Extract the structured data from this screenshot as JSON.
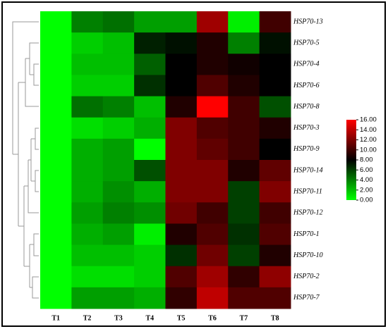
{
  "chart_data": {
    "type": "heatmap",
    "rows": [
      "HSP70-13",
      "HSP70-5",
      "HSP70-4",
      "HSP70-6",
      "HSP70-8",
      "HSP70-3",
      "HSP70-9",
      "HSP70-14",
      "HSP70-11",
      "HSP70-12",
      "HSP70-1",
      "HSP70-10",
      "HSP70-2",
      "HSP70-7"
    ],
    "columns": [
      "T1",
      "T2",
      "T3",
      "T4",
      "T5",
      "T6",
      "T7",
      "T8"
    ],
    "values": [
      [
        0,
        4,
        4.5,
        3,
        3,
        13,
        0.5,
        10
      ],
      [
        0,
        1.5,
        2,
        7,
        7.5,
        9,
        4,
        7.5
      ],
      [
        0,
        2,
        2,
        5,
        8,
        9,
        8.5,
        8
      ],
      [
        0,
        1.5,
        1.5,
        6.5,
        8,
        10.5,
        9,
        8
      ],
      [
        0,
        4.5,
        4,
        2,
        9,
        16,
        10,
        5.5
      ],
      [
        0,
        1,
        1.5,
        2.5,
        12,
        10.5,
        10,
        9
      ],
      [
        0,
        2.5,
        3,
        0,
        12,
        11,
        10,
        8
      ],
      [
        0,
        2.5,
        3,
        5.5,
        12,
        12,
        9,
        11
      ],
      [
        0,
        2.5,
        3.5,
        2.5,
        12,
        12,
        6,
        12
      ],
      [
        0,
        3,
        4,
        3.5,
        11.5,
        10,
        6,
        10
      ],
      [
        0,
        2.5,
        3,
        0.5,
        9,
        10.5,
        6.5,
        10.5
      ],
      [
        0,
        2,
        2,
        1.5,
        6.5,
        11.5,
        6,
        9
      ],
      [
        0,
        1,
        1,
        1.5,
        10.5,
        13,
        9.5,
        12.5
      ],
      [
        0,
        3,
        3,
        2.5,
        9.5,
        14,
        10.5,
        10.5
      ]
    ],
    "colormap": [
      "#00ff00",
      "#000000",
      "#ff0000"
    ],
    "zlim": [
      0,
      16
    ],
    "zticks": [
      {
        "value": 0,
        "label": "0.00"
      },
      {
        "value": 2,
        "label": "2.00"
      },
      {
        "value": 4,
        "label": "4.00"
      },
      {
        "value": 6,
        "label": "6.00"
      },
      {
        "value": 8,
        "label": "8.00"
      },
      {
        "value": 10,
        "label": "10.00"
      },
      {
        "value": 12,
        "label": "12.00"
      },
      {
        "value": 14,
        "label": "14.00"
      },
      {
        "value": 16,
        "label": "16.00"
      }
    ]
  }
}
